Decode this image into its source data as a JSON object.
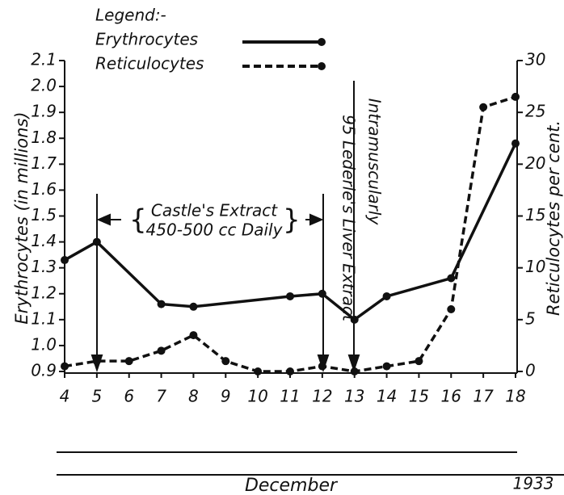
{
  "chart_data": {
    "type": "line",
    "legend_title": "Legend:-",
    "x_label": "December",
    "year_label": "1933",
    "y_label": "Erythrocytes (in millions)",
    "y2_label": "Reticulocytes per cent.",
    "annotations": [
      "Castle's Extract",
      "450-500 cc Daily",
      "95 Lederle's Liver Extract",
      "Intramuscularly"
    ],
    "xlim": [
      4,
      18
    ],
    "xticks": [
      4,
      5,
      6,
      7,
      8,
      9,
      10,
      11,
      12,
      13,
      14,
      15,
      16,
      17,
      18
    ],
    "ylim": [
      0.9,
      2.1
    ],
    "yticks": [
      0.9,
      {
        "value": 1.0,
        "label": "1.0"
      },
      1.1,
      1.2,
      1.3,
      1.4,
      1.5,
      1.6,
      1.7,
      1.8,
      1.9,
      {
        "value": 2.0,
        "label": "2.0"
      },
      2.1
    ],
    "y2lim": [
      0,
      30
    ],
    "y2ticks": [
      0,
      5,
      10,
      15,
      20,
      25,
      30
    ],
    "series": [
      {
        "name": "Erythrocytes",
        "color": "#111111",
        "dash": false,
        "x": [
          4,
          5,
          7,
          8,
          11,
          12,
          13,
          14,
          16,
          18
        ],
        "values": [
          1.33,
          1.4,
          1.16,
          1.15,
          1.19,
          1.2,
          1.1,
          1.19,
          1.26,
          1.78
        ]
      },
      {
        "name": "Reticulocytes",
        "color": "#111111",
        "dash": true,
        "axis": "y2",
        "x": [
          4,
          5,
          6,
          7,
          8,
          9,
          10,
          11,
          12,
          13,
          14,
          15,
          16,
          17,
          18
        ],
        "values": [
          0.5,
          1,
          1,
          2,
          3.5,
          1,
          0,
          0,
          0.5,
          0,
          0.5,
          1,
          6,
          25.5,
          26.5
        ]
      }
    ]
  }
}
